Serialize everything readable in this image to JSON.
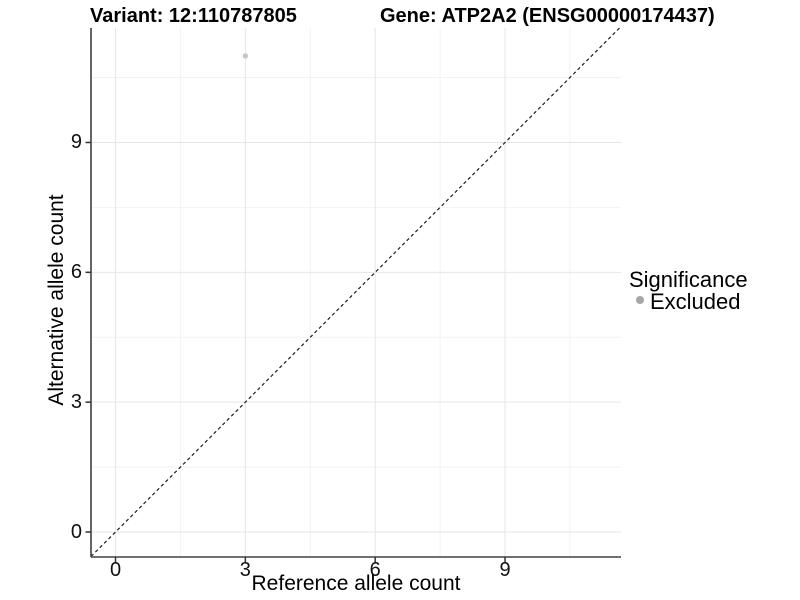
{
  "titles": {
    "variant": "Variant: 12:110787805",
    "gene": "Gene: ATP2A2 (ENSG00000174437)"
  },
  "chart_data": {
    "type": "scatter",
    "xlabel": "Reference allele count",
    "ylabel": "Alternative allele count",
    "xlim": [
      -0.6,
      11.7
    ],
    "ylim": [
      -0.6,
      11.7
    ],
    "xticks": [
      0,
      3,
      6,
      9
    ],
    "yticks": [
      0,
      3,
      6,
      9
    ],
    "xticks_minor": [
      1.5,
      4.5,
      7.5,
      10.5
    ],
    "yticks_minor": [
      1.5,
      4.5,
      7.5,
      10.5
    ],
    "grid": true,
    "series": [
      {
        "name": "Excluded",
        "color": "#c6c6c6",
        "marker_radius_px": 2.7,
        "points": [
          {
            "x": 3,
            "y": 11
          }
        ]
      }
    ],
    "reference_line": {
      "equation": "y = x",
      "style": "dashed",
      "color": "#1c1c1c"
    },
    "legend": {
      "title": "Significance",
      "position": "right",
      "swatch_color": "#a6a6a6",
      "entries": [
        "Excluded"
      ]
    },
    "colors": {
      "grid_major": "#e6e6e6",
      "grid_minor": "#f2f2f2",
      "axis": "#404040",
      "tick": "#333333"
    }
  }
}
